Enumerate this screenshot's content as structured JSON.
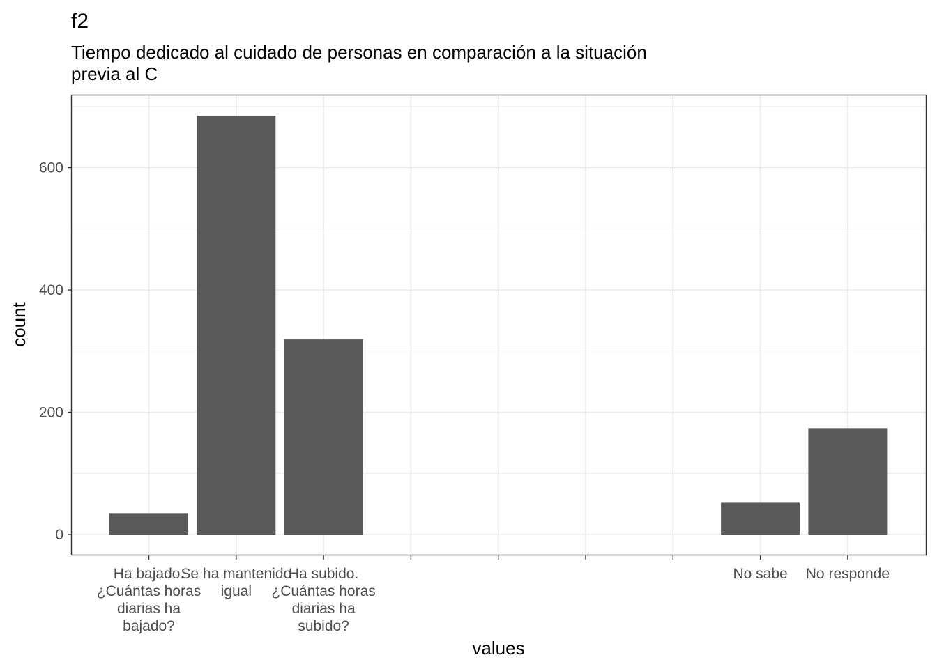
{
  "chart_data": {
    "type": "bar",
    "title": "f2",
    "subtitle": "Tiempo dedicado al cuidado de personas en comparación a la situación previa al C",
    "subtitle_lines": [
      "Tiempo dedicado al cuidado de personas en comparación a la situación",
      "previa al C"
    ],
    "xlabel": "values",
    "ylabel": "count",
    "categories": [
      "Ha bajado. ¿Cuántas horas diarias ha bajado?",
      "Se ha mantenido igual",
      "Ha subido. ¿Cuántas horas diarias ha subido?",
      "",
      "",
      "",
      "",
      "No sabe",
      "No responde"
    ],
    "category_lines": [
      [
        "Ha bajado.",
        "¿Cuántas horas",
        "diarias ha",
        "bajado?"
      ],
      [
        "Se ha mantenido",
        "igual"
      ],
      [
        "Ha subido.",
        "¿Cuántas horas",
        "diarias ha",
        "subido?"
      ],
      [],
      [],
      [],
      [],
      [
        "No sabe"
      ],
      [
        "No responde"
      ]
    ],
    "values": [
      35,
      685,
      319,
      null,
      null,
      null,
      null,
      52,
      174
    ],
    "ylim": [
      -33,
      718
    ],
    "yticks": [
      0,
      200,
      400,
      600
    ],
    "grid": true,
    "bar_color": "#595959",
    "grid_color": "#ebebeb",
    "panel_border_color": "#333333"
  }
}
